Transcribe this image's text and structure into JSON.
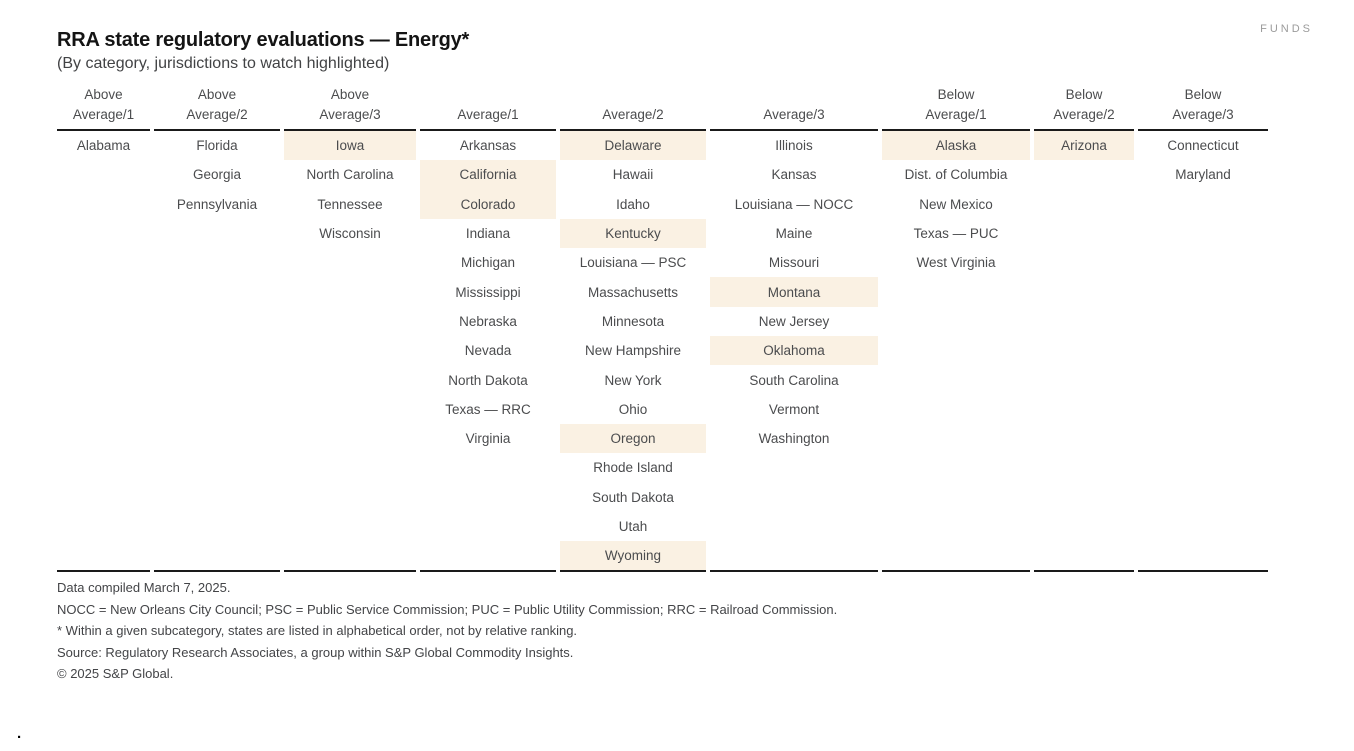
{
  "logo": {
    "text": "FUNDS"
  },
  "header": {
    "title": "RRA state regulatory evaluations — Energy*",
    "subtitle": "(By category, jurisdictions to watch highlighted)"
  },
  "table": {
    "row_count": 15,
    "columns": [
      {
        "id": "above-average-1",
        "label": [
          "Above",
          "Average/1"
        ],
        "states": [
          {
            "name": "Alabama",
            "watch": false
          }
        ]
      },
      {
        "id": "above-average-2",
        "label": [
          "Above",
          "Average/2"
        ],
        "states": [
          {
            "name": "Florida",
            "watch": false
          },
          {
            "name": "Georgia",
            "watch": false
          },
          {
            "name": "Pennsylvania",
            "watch": false
          }
        ]
      },
      {
        "id": "above-average-3",
        "label": [
          "Above",
          "Average/3"
        ],
        "states": [
          {
            "name": "Iowa",
            "watch": true
          },
          {
            "name": "North Carolina",
            "watch": false
          },
          {
            "name": "Tennessee",
            "watch": false
          },
          {
            "name": "Wisconsin",
            "watch": false
          }
        ]
      },
      {
        "id": "average-1",
        "label": [
          "",
          "Average/1"
        ],
        "states": [
          {
            "name": "Arkansas",
            "watch": false
          },
          {
            "name": "California",
            "watch": true
          },
          {
            "name": "Colorado",
            "watch": true
          },
          {
            "name": "Indiana",
            "watch": false
          },
          {
            "name": "Michigan",
            "watch": false
          },
          {
            "name": "Mississippi",
            "watch": false
          },
          {
            "name": "Nebraska",
            "watch": false
          },
          {
            "name": "Nevada",
            "watch": false
          },
          {
            "name": "North Dakota",
            "watch": false
          },
          {
            "name": "Texas — RRC",
            "watch": false
          },
          {
            "name": "Virginia",
            "watch": false
          }
        ]
      },
      {
        "id": "average-2",
        "label": [
          "",
          "Average/2"
        ],
        "states": [
          {
            "name": "Delaware",
            "watch": true
          },
          {
            "name": "Hawaii",
            "watch": false
          },
          {
            "name": "Idaho",
            "watch": false
          },
          {
            "name": "Kentucky",
            "watch": true
          },
          {
            "name": "Louisiana — PSC",
            "watch": false
          },
          {
            "name": "Massachusetts",
            "watch": false
          },
          {
            "name": "Minnesota",
            "watch": false
          },
          {
            "name": "New Hampshire",
            "watch": false
          },
          {
            "name": "New York",
            "watch": false
          },
          {
            "name": "Ohio",
            "watch": false
          },
          {
            "name": "Oregon",
            "watch": true
          },
          {
            "name": "Rhode Island",
            "watch": false
          },
          {
            "name": "South Dakota",
            "watch": false
          },
          {
            "name": "Utah",
            "watch": false
          },
          {
            "name": "Wyoming",
            "watch": true
          }
        ]
      },
      {
        "id": "average-3",
        "label": [
          "",
          "Average/3"
        ],
        "states": [
          {
            "name": "Illinois",
            "watch": false
          },
          {
            "name": "Kansas",
            "watch": false
          },
          {
            "name": "Louisiana — NOCC",
            "watch": false
          },
          {
            "name": "Maine",
            "watch": false
          },
          {
            "name": "Missouri",
            "watch": false
          },
          {
            "name": "Montana",
            "watch": true
          },
          {
            "name": "New Jersey",
            "watch": false
          },
          {
            "name": "Oklahoma",
            "watch": true
          },
          {
            "name": "South Carolina",
            "watch": false
          },
          {
            "name": "Vermont",
            "watch": false
          },
          {
            "name": "Washington",
            "watch": false
          }
        ]
      },
      {
        "id": "below-average-1",
        "label": [
          "Below",
          "Average/1"
        ],
        "states": [
          {
            "name": "Alaska",
            "watch": true
          },
          {
            "name": "Dist. of Columbia",
            "watch": false
          },
          {
            "name": "New Mexico",
            "watch": false
          },
          {
            "name": "Texas — PUC",
            "watch": false
          },
          {
            "name": "West Virginia",
            "watch": false
          }
        ]
      },
      {
        "id": "below-average-2",
        "label": [
          "Below",
          "Average/2"
        ],
        "states": [
          {
            "name": "Arizona",
            "watch": true
          }
        ]
      },
      {
        "id": "below-average-3",
        "label": [
          "Below",
          "Average/3"
        ],
        "states": [
          {
            "name": "Connecticut",
            "watch": false
          },
          {
            "name": "Maryland",
            "watch": false
          }
        ]
      }
    ]
  },
  "footnotes": [
    "Data compiled March 7, 2025.",
    "NOCC = New Orleans City Council; PSC = Public Service Commission;  PUC = Public Utility Commission;  RRC = Railroad Commission.",
    "* Within a given subcategory, states are listed in alphabetical order, not by relative ranking.",
    "Source: Regulatory Research Associates, a group within S&P Global Commodity Insights.",
    "© 2025 S&P Global."
  ],
  "stray_mark": ".",
  "colors": {
    "highlight_bg": "#faf1e3",
    "rule": "#1a1a1a",
    "text": "#4b4c4e"
  }
}
